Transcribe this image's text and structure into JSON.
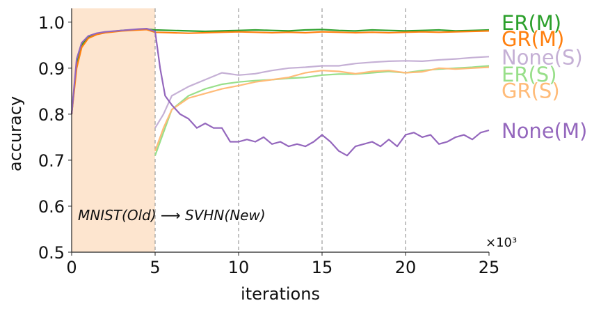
{
  "chart_data": {
    "type": "line",
    "title": "",
    "xlabel": "iterations",
    "ylabel": "accuracy",
    "x_multiplier_label": "×10³",
    "xlim": [
      0,
      25
    ],
    "ylim": [
      0.5,
      1.03
    ],
    "x_ticks": [
      0,
      5,
      10,
      15,
      20,
      25
    ],
    "x_tick_labels": [
      "0",
      "5",
      "10",
      "15",
      "20",
      "25"
    ],
    "y_ticks": [
      0.5,
      0.6,
      0.7,
      0.8,
      0.9,
      1.0
    ],
    "y_tick_labels": [
      "0.5",
      "0.6",
      "0.7",
      "0.8",
      "0.9",
      "1.0"
    ],
    "vertical_gridlines_at": [
      5,
      10,
      15,
      20
    ],
    "shaded_region": {
      "x_start": 0,
      "x_end": 5,
      "color": "#fde5cf"
    },
    "annotation": "MNIST(Old) ⟶ SVHN(New)",
    "legend_placement": "right (end-of-line labels)",
    "series": [
      {
        "name": "ER(M)",
        "color": "#2ca02c",
        "x": [
          0,
          0.3,
          0.6,
          1,
          1.5,
          2,
          3,
          4,
          4.5,
          5,
          6,
          7,
          8,
          9,
          10,
          11,
          12,
          13,
          14,
          15,
          16,
          17,
          18,
          19,
          20,
          21,
          22,
          23,
          24,
          25
        ],
        "y": [
          0.8,
          0.91,
          0.95,
          0.968,
          0.975,
          0.978,
          0.982,
          0.984,
          0.985,
          0.983,
          0.982,
          0.981,
          0.98,
          0.981,
          0.982,
          0.983,
          0.982,
          0.981,
          0.983,
          0.984,
          0.982,
          0.981,
          0.983,
          0.982,
          0.981,
          0.982,
          0.983,
          0.981,
          0.982,
          0.983
        ]
      },
      {
        "name": "GR(M)",
        "color": "#ff7f0e",
        "x": [
          0,
          0.3,
          0.6,
          1,
          1.5,
          2,
          3,
          4,
          4.5,
          5,
          6,
          7,
          8,
          9,
          10,
          11,
          12,
          13,
          14,
          15,
          16,
          17,
          18,
          19,
          20,
          21,
          22,
          23,
          24,
          25
        ],
        "y": [
          0.8,
          0.9,
          0.945,
          0.965,
          0.973,
          0.977,
          0.981,
          0.983,
          0.984,
          0.978,
          0.977,
          0.976,
          0.977,
          0.978,
          0.979,
          0.978,
          0.977,
          0.978,
          0.977,
          0.979,
          0.978,
          0.977,
          0.978,
          0.977,
          0.978,
          0.979,
          0.978,
          0.979,
          0.98,
          0.981
        ]
      },
      {
        "name": "None(S)",
        "color": "#c5b0d5",
        "x": [
          5,
          5.5,
          6,
          7,
          8,
          9,
          10,
          11,
          12,
          13,
          14,
          15,
          16,
          17,
          18,
          19,
          20,
          21,
          22,
          23,
          24,
          25
        ],
        "y": [
          0.77,
          0.8,
          0.84,
          0.86,
          0.875,
          0.89,
          0.885,
          0.888,
          0.895,
          0.9,
          0.902,
          0.905,
          0.905,
          0.91,
          0.913,
          0.915,
          0.916,
          0.915,
          0.918,
          0.92,
          0.923,
          0.925
        ]
      },
      {
        "name": "ER(S)",
        "color": "#98df8a",
        "x": [
          5,
          5.5,
          6,
          7,
          8,
          9,
          10,
          11,
          12,
          13,
          14,
          15,
          16,
          17,
          18,
          19,
          20,
          21,
          22,
          23,
          24,
          25
        ],
        "y": [
          0.71,
          0.76,
          0.81,
          0.84,
          0.855,
          0.865,
          0.87,
          0.873,
          0.875,
          0.878,
          0.88,
          0.885,
          0.887,
          0.887,
          0.89,
          0.893,
          0.89,
          0.895,
          0.898,
          0.9,
          0.902,
          0.905
        ]
      },
      {
        "name": "GR(S)",
        "color": "#ffbb78",
        "x": [
          5,
          5.5,
          6,
          7,
          8,
          9,
          10,
          11,
          12,
          13,
          14,
          15,
          16,
          17,
          18,
          19,
          20,
          21,
          22,
          23,
          24,
          25
        ],
        "y": [
          0.72,
          0.77,
          0.81,
          0.835,
          0.845,
          0.855,
          0.862,
          0.87,
          0.875,
          0.88,
          0.89,
          0.895,
          0.893,
          0.888,
          0.893,
          0.895,
          0.89,
          0.892,
          0.9,
          0.898,
          0.9,
          0.902
        ]
      },
      {
        "name": "None(M)",
        "color": "#9467bd",
        "x": [
          0,
          0.3,
          0.6,
          1,
          1.5,
          2,
          3,
          4,
          4.5,
          5,
          5.3,
          5.6,
          6,
          6.5,
          7,
          7.5,
          8,
          8.5,
          9,
          9.5,
          10,
          10.5,
          11,
          11.5,
          12,
          12.5,
          13,
          13.5,
          14,
          14.5,
          15,
          15.5,
          16,
          16.5,
          17,
          17.5,
          18,
          18.5,
          19,
          19.5,
          20,
          20.5,
          21,
          21.5,
          22,
          22.5,
          23,
          23.5,
          24,
          24.5,
          25
        ],
        "y": [
          0.8,
          0.92,
          0.955,
          0.97,
          0.976,
          0.979,
          0.982,
          0.985,
          0.986,
          0.98,
          0.9,
          0.84,
          0.82,
          0.8,
          0.79,
          0.77,
          0.78,
          0.77,
          0.77,
          0.74,
          0.74,
          0.745,
          0.74,
          0.75,
          0.735,
          0.74,
          0.73,
          0.735,
          0.73,
          0.74,
          0.755,
          0.74,
          0.72,
          0.71,
          0.73,
          0.735,
          0.74,
          0.73,
          0.745,
          0.73,
          0.755,
          0.76,
          0.75,
          0.755,
          0.735,
          0.74,
          0.75,
          0.755,
          0.745,
          0.76,
          0.765
        ]
      }
    ],
    "legend_order": [
      "ER(M)",
      "GR(M)",
      "None(S)",
      "ER(S)",
      "GR(S)",
      "None(M)"
    ],
    "legend_label_y": [
      1.0,
      0.965,
      0.925,
      0.888,
      0.852,
      0.765
    ]
  }
}
